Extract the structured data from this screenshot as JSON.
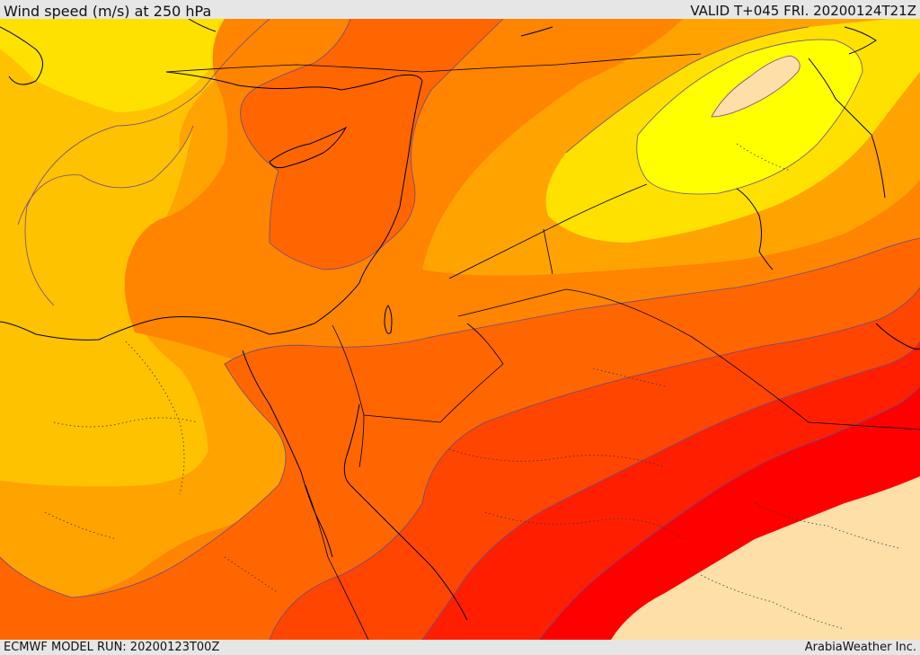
{
  "header": {
    "title": "Wind speed (m/s) at 250 hPa",
    "valid_time": "VALID T+045 FRI. 20200124T21Z"
  },
  "footer": {
    "model_run": "ECMWF MODEL RUN: 20200123T00Z",
    "credit": "ArabiaWeather Inc."
  },
  "map": {
    "variable": "wind-speed",
    "level": "250 hPa",
    "units": "m/s",
    "shading_colors": [
      "#ffdfa8",
      "#ffff00",
      "#ffe100",
      "#ffc200",
      "#ffa300",
      "#ff8400",
      "#ff6600",
      "#ff4500",
      "#ff1f00",
      "#ff0000"
    ]
  }
}
